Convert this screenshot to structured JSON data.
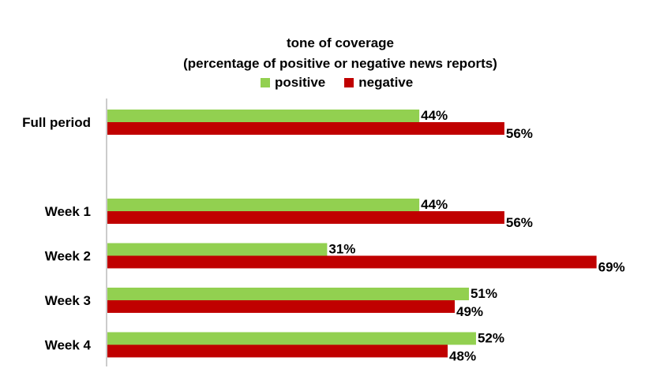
{
  "chart_data": {
    "type": "bar",
    "orientation": "horizontal",
    "title": "tone of coverage",
    "subtitle": "(percentage of positive or negative news reports)",
    "categories": [
      "Full period",
      "Week 1",
      "Week 2",
      "Week 3",
      "Week 4"
    ],
    "series": [
      {
        "name": "positive",
        "color": "#92d050",
        "values": [
          44,
          44,
          31,
          51,
          52
        ]
      },
      {
        "name": "negative",
        "color": "#c00000",
        "values": [
          56,
          56,
          69,
          49,
          48
        ]
      }
    ],
    "value_suffix": "%",
    "xlim": [
      0,
      100
    ],
    "grid": false,
    "legend": "top"
  }
}
